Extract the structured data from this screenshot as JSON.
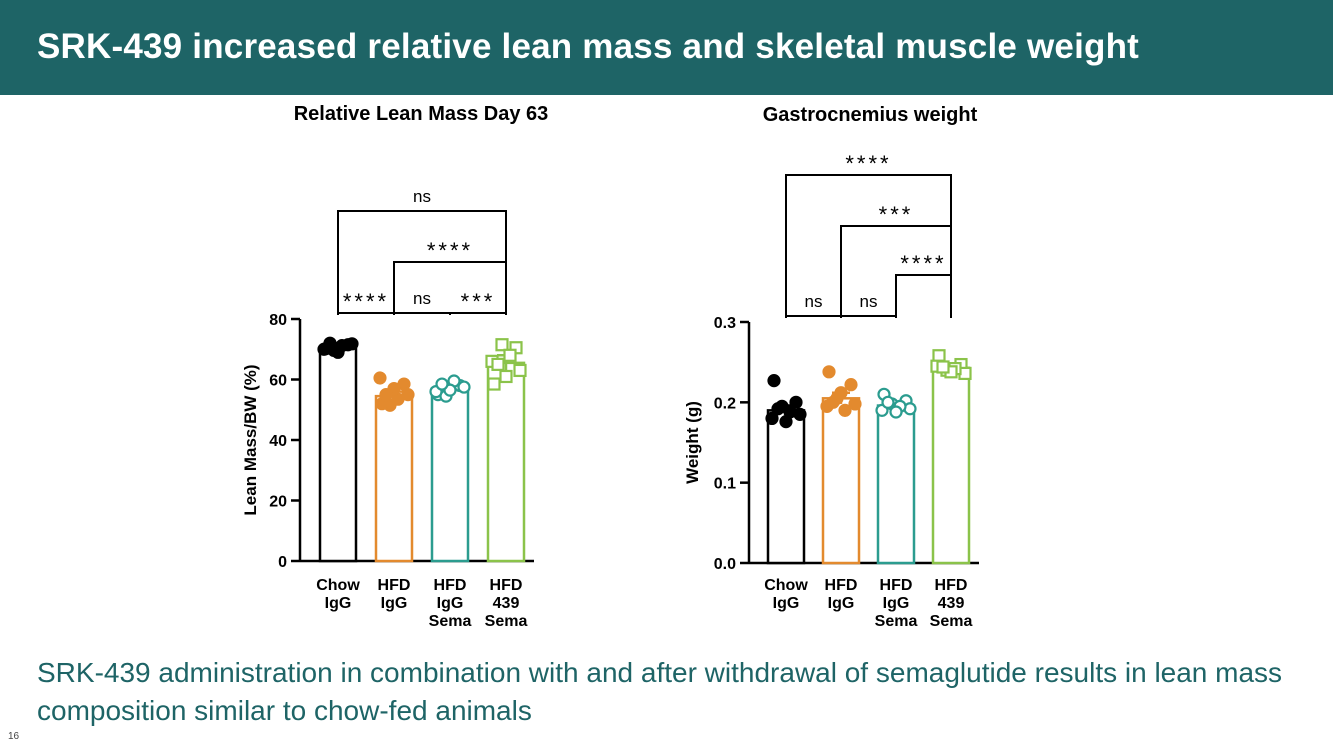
{
  "slide": {
    "title": "SRK-439 increased relative lean mass and skeletal muscle weight",
    "caption": "SRK-439 administration in combination with and after withdrawal of semaglutide results in lean mass composition similar to chow-fed animals",
    "page_number": "16"
  },
  "colors": {
    "header": "#1e6466",
    "caption": "#1e6466"
  },
  "chart_data": [
    {
      "type": "bar",
      "title": "Relative Lean Mass Day 63",
      "xlabel": "",
      "ylabel": "Lean Mass/BW (%)",
      "ylim": [
        0,
        80
      ],
      "yticks": [
        0,
        20,
        40,
        60,
        80
      ],
      "ytick_labels": [
        "0",
        "20",
        "40",
        "60",
        "80"
      ],
      "categories": [
        {
          "lines": [
            "Chow",
            "IgG"
          ],
          "color": "#000000",
          "open": false,
          "marker": "circle",
          "value": 70.5,
          "error": 0.5,
          "points": [
            70.2,
            71.5,
            69.6,
            71.8,
            70.0,
            71.2,
            69.0,
            72.0
          ]
        },
        {
          "lines": [
            "HFD",
            "IgG"
          ],
          "color": "#e38a2e",
          "open": false,
          "marker": "circle",
          "value": 54.5,
          "error": 1.5,
          "points": [
            52.0,
            58.5,
            51.5,
            55.0,
            60.5,
            53.5,
            57.0,
            55.0
          ]
        },
        {
          "lines": [
            "HFD",
            "IgG",
            "Sema"
          ],
          "color": "#2b9c8f",
          "open": true,
          "marker": "circle",
          "value": 57.0,
          "error": 1.0,
          "points": [
            55.0,
            58.0,
            54.5,
            57.5,
            56.0,
            59.5,
            56.5,
            58.5
          ]
        },
        {
          "lines": [
            "HFD",
            "439",
            "Sema"
          ],
          "color": "#8bc34a",
          "open": true,
          "marker": "square",
          "value": 65.5,
          "error": 2.5,
          "points": [
            58.5,
            70.5,
            71.5,
            63.0,
            66.0,
            68.0,
            61.0,
            65.0
          ]
        }
      ],
      "comparisons": [
        {
          "from": 0,
          "to": 3,
          "label": "ns"
        },
        {
          "from": 1,
          "to": 3,
          "label": "****"
        },
        {
          "from": 0,
          "to": 1,
          "label": "****"
        },
        {
          "from": 1,
          "to": 2,
          "label": "ns"
        },
        {
          "from": 2,
          "to": 3,
          "label": "***"
        }
      ]
    },
    {
      "type": "bar",
      "title": "Gastrocnemius weight",
      "xlabel": "",
      "ylabel": "Weight (g)",
      "ylim": [
        0,
        0.3
      ],
      "yticks": [
        0,
        0.1,
        0.2,
        0.3
      ],
      "ytick_labels": [
        "0.0",
        "0.1",
        "0.2",
        "0.3"
      ],
      "categories": [
        {
          "lines": [
            "Chow",
            "IgG"
          ],
          "color": "#000000",
          "open": false,
          "marker": "circle",
          "value": 0.19,
          "error": 0.006,
          "points": [
            0.227,
            0.2,
            0.195,
            0.185,
            0.18,
            0.188,
            0.176,
            0.192
          ]
        },
        {
          "lines": [
            "HFD",
            "IgG"
          ],
          "color": "#e38a2e",
          "open": false,
          "marker": "circle",
          "value": 0.205,
          "error": 0.007,
          "points": [
            0.238,
            0.222,
            0.205,
            0.198,
            0.195,
            0.19,
            0.212,
            0.2
          ]
        },
        {
          "lines": [
            "HFD",
            "IgG",
            "Sema"
          ],
          "color": "#2b9c8f",
          "open": true,
          "marker": "circle",
          "value": 0.196,
          "error": 0.003,
          "points": [
            0.21,
            0.202,
            0.198,
            0.192,
            0.19,
            0.195,
            0.188,
            0.2
          ]
        },
        {
          "lines": [
            "HFD",
            "439",
            "Sema"
          ],
          "color": "#8bc34a",
          "open": true,
          "marker": "square",
          "value": 0.243,
          "error": 0.003,
          "points": [
            0.258,
            0.247,
            0.24,
            0.236,
            0.245,
            0.242,
            0.238,
            0.244
          ]
        }
      ],
      "comparisons": [
        {
          "from": 0,
          "to": 3,
          "label": "****"
        },
        {
          "from": 1,
          "to": 3,
          "label": "***"
        },
        {
          "from": 2,
          "to": 3,
          "label": "****"
        },
        {
          "from": 0,
          "to": 1,
          "label": "ns"
        },
        {
          "from": 1,
          "to": 2,
          "label": "ns"
        }
      ]
    }
  ]
}
